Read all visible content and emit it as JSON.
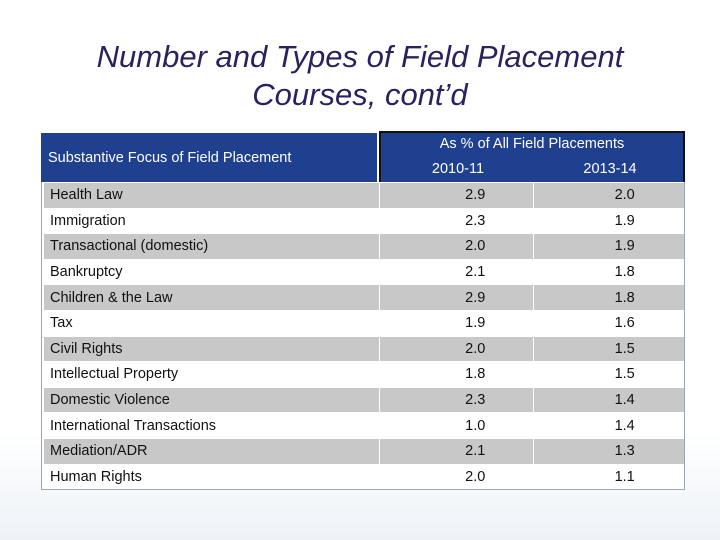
{
  "title": {
    "line1": "Number and Types of Field Placement",
    "line2": "Courses, cont’d"
  },
  "table": {
    "header": {
      "focus": "Substantive Focus of Field Placement",
      "group": "As % of All Field Placements",
      "col1": "2010-11",
      "col2": "2013-14"
    },
    "rows": [
      {
        "focus": "Health Law",
        "v1": "2.9",
        "v2": "2.0"
      },
      {
        "focus": "Immigration",
        "v1": "2.3",
        "v2": "1.9"
      },
      {
        "focus": "Transactional (domestic)",
        "v1": "2.0",
        "v2": "1.9"
      },
      {
        "focus": "Bankruptcy",
        "v1": "2.1",
        "v2": "1.8"
      },
      {
        "focus": "Children & the Law",
        "v1": "2.9",
        "v2": "1.8"
      },
      {
        "focus": "Tax",
        "v1": "1.9",
        "v2": "1.6"
      },
      {
        "focus": "Civil Rights",
        "v1": "2.0",
        "v2": "1.5"
      },
      {
        "focus": "Intellectual Property",
        "v1": "1.8",
        "v2": "1.5"
      },
      {
        "focus": "Domestic Violence",
        "v1": "2.3",
        "v2": "1.4"
      },
      {
        "focus": "International Transactions",
        "v1": "1.0",
        "v2": "1.4"
      },
      {
        "focus": "Mediation/ADR",
        "v1": "2.1",
        "v2": "1.3"
      },
      {
        "focus": "Human Rights",
        "v1": "2.0",
        "v2": "1.1"
      }
    ]
  }
}
